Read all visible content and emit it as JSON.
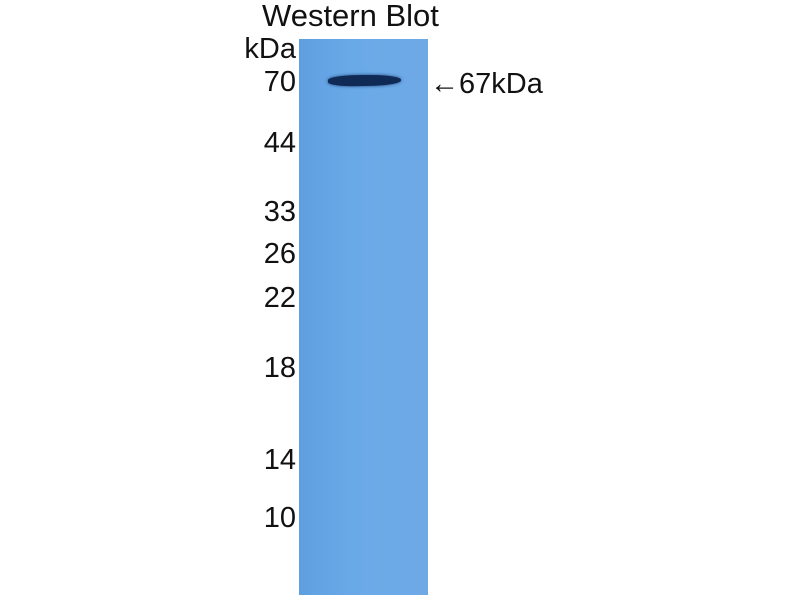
{
  "title": "Western Blot",
  "unit_label": "kDa",
  "markers": [
    "70",
    "44",
    "33",
    "26",
    "22",
    "18",
    "14",
    "10"
  ],
  "band_annotation": "←67kDa",
  "colors": {
    "membrane": "#6aa9e8",
    "band": "#0e2a55"
  }
}
